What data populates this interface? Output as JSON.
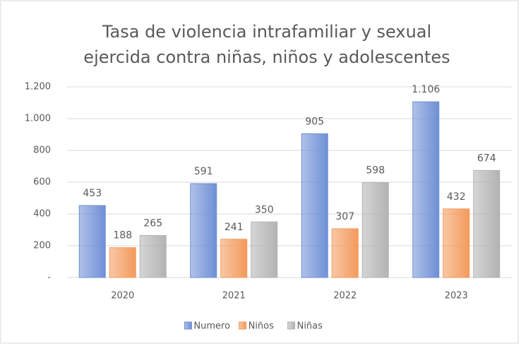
{
  "chart_data": {
    "type": "bar",
    "title": [
      "Tasa de violencia intrafamiliar y sexual",
      "ejercida contra niñas, niños y adolescentes"
    ],
    "categories": [
      "2020",
      "2021",
      "2022",
      "2023"
    ],
    "series": [
      {
        "name": "Numero",
        "color": "#6f8fd6",
        "values": [
          453,
          591,
          905,
          1106
        ],
        "value_labels": [
          "453",
          "591",
          "905",
          "1.106"
        ]
      },
      {
        "name": "Niños",
        "color": "#f39a5c",
        "values": [
          188,
          241,
          307,
          432
        ]
      },
      {
        "name": "Niñas",
        "color": "#b3b3b3",
        "values": [
          265,
          350,
          598,
          674
        ]
      }
    ],
    "ylim": [
      0,
      1200
    ],
    "yticks": [
      {
        "value": 0,
        "label": "-"
      },
      200,
      400,
      600,
      800,
      {
        "value": 1000,
        "label": "1.000"
      },
      {
        "value": 1200,
        "label": "1.200"
      }
    ],
    "grid": true,
    "legend": "bottom"
  }
}
